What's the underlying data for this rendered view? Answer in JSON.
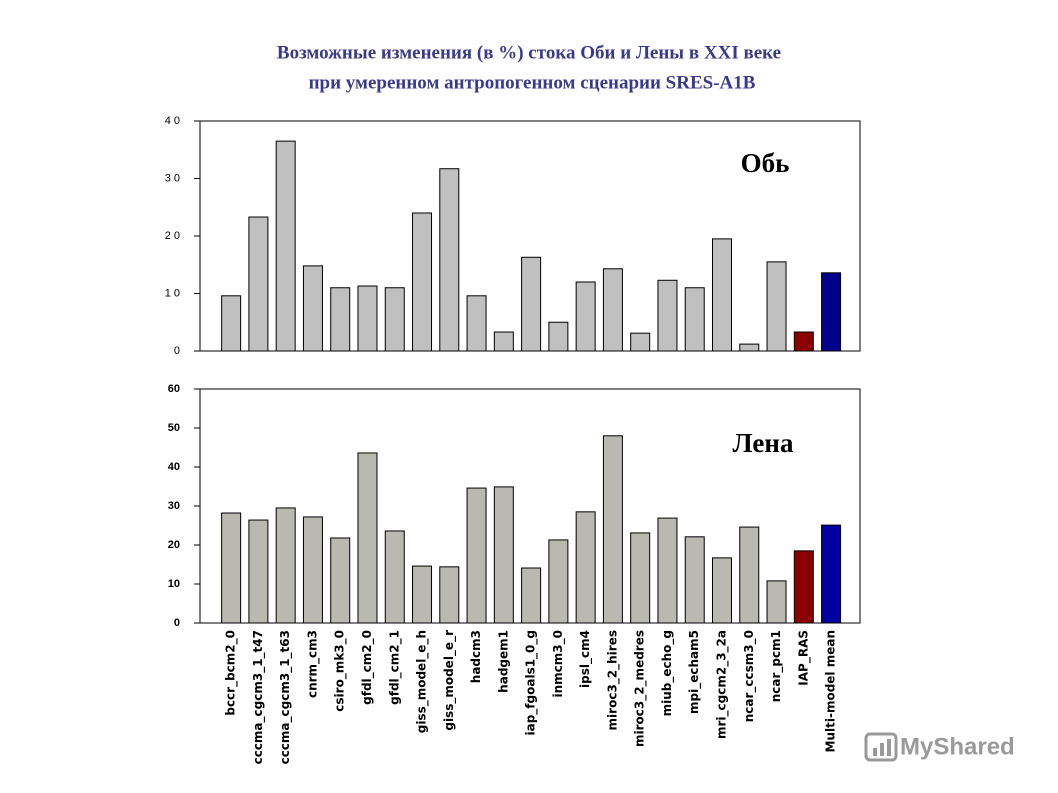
{
  "title": [
    "Возможные изменения (в %) стока Оби и Лены в XXI веке",
    "при умеренном антропогенном сценарии SRES-A1B"
  ],
  "watermark": "MyShared",
  "chart_data": [
    {
      "type": "bar",
      "annotation": "Обь",
      "categories": [
        "bccr_bcm2_0",
        "cccma_cgcm3_1_t47",
        "cccma_cgcm3_1_t63",
        "cnrm_cm3",
        "csiro_mk3_0",
        "gfdl_cm2_0",
        "gfdl_cm2_1",
        "giss_model_e_h",
        "giss_model_e_r",
        "hadcm3",
        "hadgem1",
        "iap_fgoals1_0_g",
        "inmcm3_0",
        "ipsl_cm4",
        "miroc3_2_hires",
        "miroc3_2_medres",
        "miub_echo_g",
        "mpi_echam5",
        "mri_cgcm2_3_2a",
        "ncar_ccsm3_0",
        "ncar_pcm1",
        "IAP_RAS",
        "Multi-model mean"
      ],
      "values": [
        9.6,
        23.3,
        36.5,
        14.8,
        11.0,
        11.3,
        11.0,
        24.0,
        31.7,
        9.6,
        3.3,
        16.3,
        5.0,
        12.0,
        14.3,
        3.1,
        12.3,
        11.0,
        19.5,
        1.2,
        15.5,
        3.3,
        13.6
      ],
      "colors": [
        "#c0c0c0",
        "#c0c0c0",
        "#c0c0c0",
        "#c0c0c0",
        "#c0c0c0",
        "#c0c0c0",
        "#c0c0c0",
        "#c0c0c0",
        "#c0c0c0",
        "#c0c0c0",
        "#c0c0c0",
        "#c0c0c0",
        "#c0c0c0",
        "#c0c0c0",
        "#c0c0c0",
        "#c0c0c0",
        "#c0c0c0",
        "#c0c0c0",
        "#c0c0c0",
        "#c0c0c0",
        "#c0c0c0",
        "#8b0000",
        "#00008b"
      ],
      "ylim": [
        0,
        40
      ],
      "yticks": [
        0,
        {
          "value": 10,
          "label": "1 0"
        },
        {
          "value": 20,
          "label": "2 0"
        },
        {
          "value": 30,
          "label": "3 0"
        },
        {
          "value": 40,
          "label": "4 0"
        }
      ]
    },
    {
      "type": "bar",
      "annotation": "Лена",
      "categories": [
        "bccr_bcm2_0",
        "cccma_cgcm3_1_t47",
        "cccma_cgcm3_1_t63",
        "cnrm_cm3",
        "csiro_mk3_0",
        "gfdl_cm2_0",
        "gfdl_cm2_1",
        "giss_model_e_h",
        "giss_model_e_r",
        "hadcm3",
        "hadgem1",
        "iap_fgoals1_0_g",
        "inmcm3_0",
        "ipsl_cm4",
        "miroc3_2_hires",
        "miroc3_2_medres",
        "miub_echo_g",
        "mpi_echam5",
        "mri_cgcm2_3_2a",
        "ncar_ccsm3_0",
        "ncar_pcm1",
        "IAP_RAS",
        "Multi-model mean"
      ],
      "values": [
        28.2,
        26.4,
        29.5,
        27.2,
        21.8,
        43.6,
        23.6,
        14.6,
        14.4,
        34.6,
        34.9,
        14.1,
        21.3,
        28.5,
        48.0,
        23.1,
        26.9,
        22.1,
        16.7,
        24.6,
        10.8,
        18.5,
        25.1
      ],
      "colors": [
        "#b9b9b1",
        "#b9b9b1",
        "#b9b9b1",
        "#b9b9b1",
        "#b9b9b1",
        "#b9b9b1",
        "#b9b9b1",
        "#b9b9b1",
        "#b9b9b1",
        "#b9b9b1",
        "#b9b9b1",
        "#b9b9b1",
        "#b9b9b1",
        "#b9b9b1",
        "#b9b9b1",
        "#b9b9b1",
        "#b9b9b1",
        "#b9b9b1",
        "#b9b9b1",
        "#b9b9b1",
        "#b9b9b1",
        "#8b0000",
        "#0000a0"
      ],
      "ylim": [
        0,
        60
      ],
      "yticks": [
        0,
        10,
        20,
        30,
        40,
        50,
        60
      ]
    }
  ]
}
